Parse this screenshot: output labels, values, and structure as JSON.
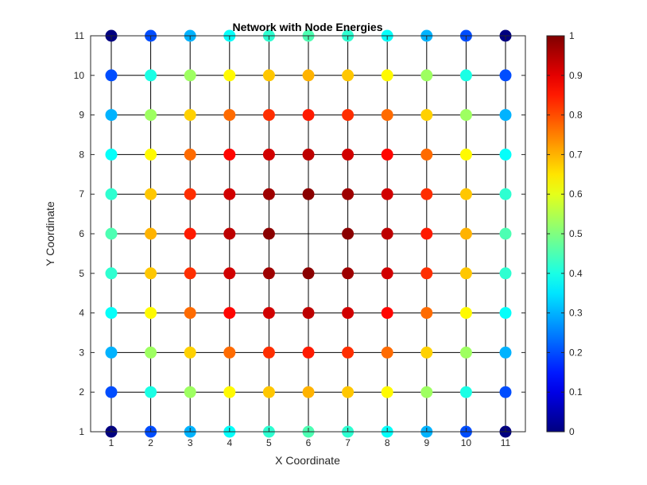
{
  "chart_data": {
    "type": "scatter",
    "title": "Network with Node Energies",
    "xlabel": "X Coordinate",
    "ylabel": "Y Coordinate",
    "xlim": [
      1,
      11
    ],
    "ylim": [
      1,
      11
    ],
    "xticks": [
      "1",
      "2",
      "3",
      "4",
      "5",
      "6",
      "7",
      "8",
      "9",
      "10",
      "11"
    ],
    "yticks": [
      "1",
      "2",
      "3",
      "4",
      "5",
      "6",
      "7",
      "8",
      "9",
      "10",
      "11"
    ],
    "colorbar": {
      "colormap": "jet",
      "range": [
        0,
        1
      ],
      "ticks": [
        "0",
        "0.1",
        "0.2",
        "0.3",
        "0.4",
        "0.5",
        "0.6",
        "0.7",
        "0.8",
        "0.9",
        "1"
      ]
    },
    "grid_edges": "4-neighbour lattice",
    "energy_rows_y11_to_y1": [
      [
        0.0,
        0.2,
        0.3,
        0.38,
        0.42,
        0.45,
        0.42,
        0.38,
        0.3,
        0.2,
        0.0
      ],
      [
        0.2,
        0.4,
        0.53,
        0.63,
        0.68,
        0.7,
        0.68,
        0.63,
        0.53,
        0.4,
        0.2
      ],
      [
        0.3,
        0.53,
        0.67,
        0.77,
        0.83,
        0.85,
        0.83,
        0.77,
        0.67,
        0.53,
        0.3
      ],
      [
        0.38,
        0.63,
        0.77,
        0.87,
        0.92,
        0.94,
        0.92,
        0.87,
        0.77,
        0.63,
        0.38
      ],
      [
        0.42,
        0.68,
        0.83,
        0.92,
        0.97,
        0.99,
        0.97,
        0.92,
        0.83,
        0.68,
        0.42
      ],
      [
        0.45,
        0.7,
        0.85,
        0.94,
        0.99,
        null,
        0.99,
        0.94,
        0.85,
        0.7,
        0.45
      ],
      [
        0.42,
        0.68,
        0.83,
        0.92,
        0.97,
        0.99,
        0.97,
        0.92,
        0.83,
        0.68,
        0.42
      ],
      [
        0.38,
        0.63,
        0.77,
        0.87,
        0.92,
        0.94,
        0.92,
        0.87,
        0.77,
        0.63,
        0.38
      ],
      [
        0.3,
        0.53,
        0.67,
        0.77,
        0.83,
        0.85,
        0.83,
        0.77,
        0.67,
        0.53,
        0.3
      ],
      [
        0.2,
        0.4,
        0.53,
        0.63,
        0.68,
        0.7,
        0.68,
        0.63,
        0.53,
        0.4,
        0.2
      ],
      [
        0.0,
        0.2,
        0.3,
        0.38,
        0.42,
        0.45,
        0.42,
        0.38,
        0.3,
        0.2,
        0.0
      ]
    ]
  }
}
